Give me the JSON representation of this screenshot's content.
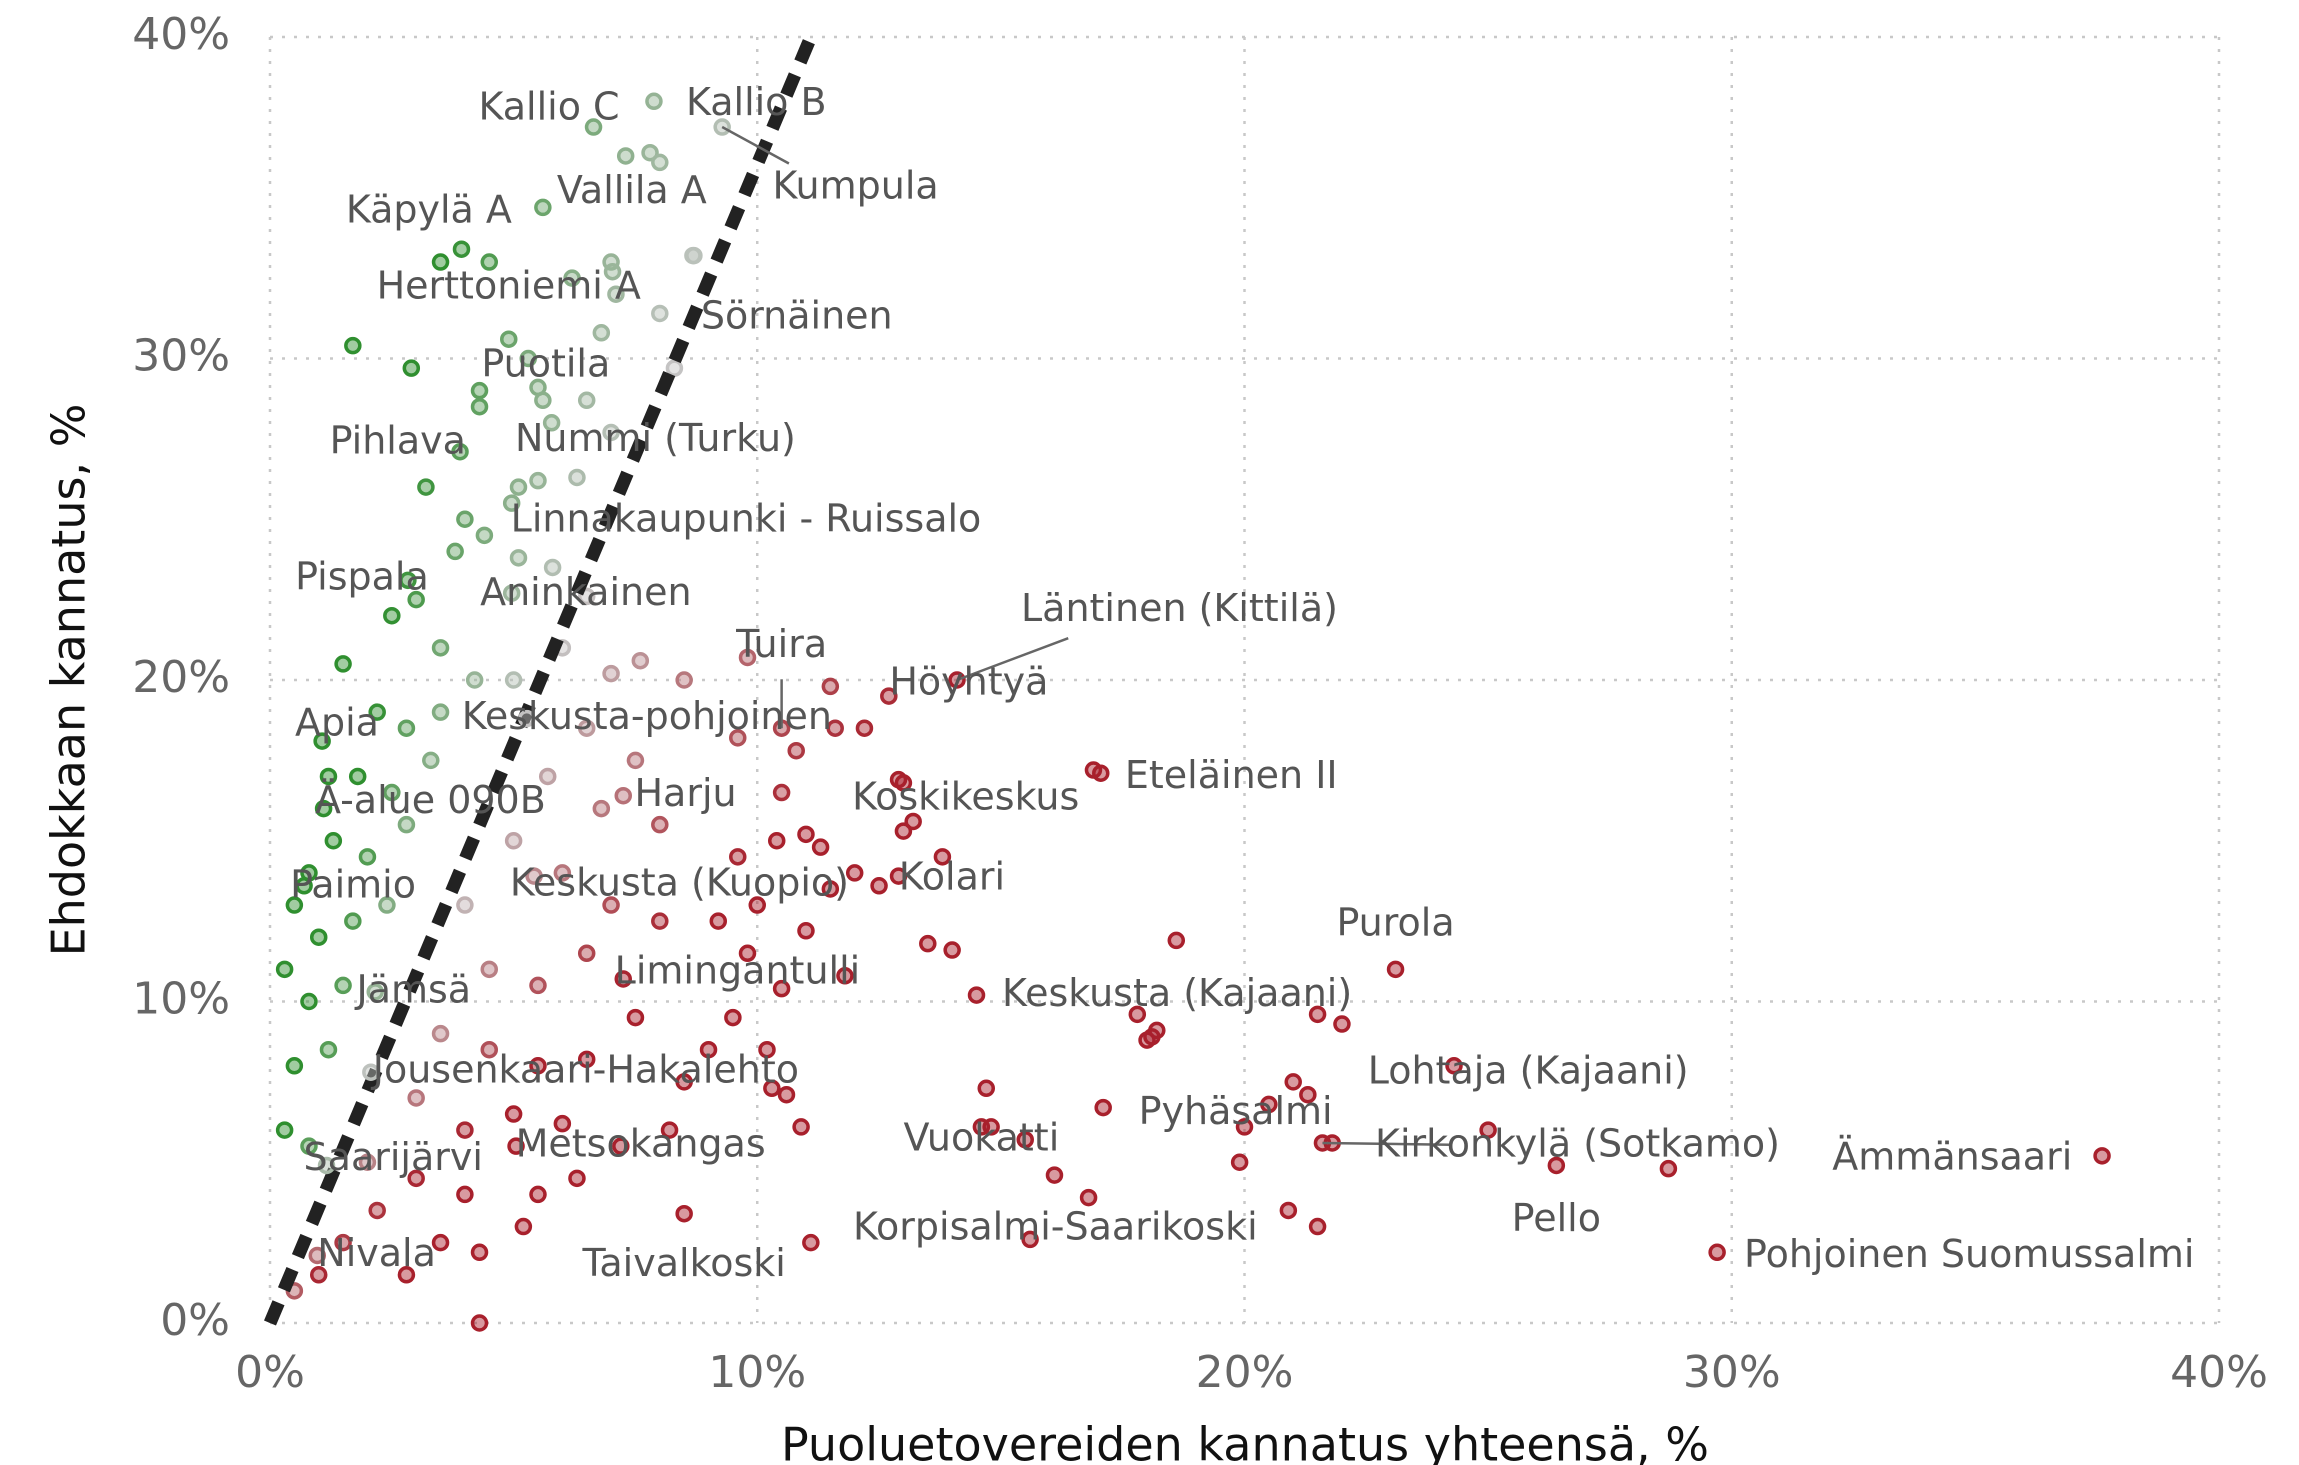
{
  "chart_data": {
    "type": "scatter",
    "xlabel": "Puoluetovereiden kannatus yhteensä, %",
    "ylabel": "Ehdokkaan kannatus, %",
    "xlim": [
      0,
      40
    ],
    "ylim": [
      0,
      40
    ],
    "xticks": [
      {
        "value": 0,
        "label": "0%"
      },
      {
        "value": 10,
        "label": "10%"
      },
      {
        "value": 20,
        "label": "20%"
      },
      {
        "value": 30,
        "label": "30%"
      },
      {
        "value": 40,
        "label": "40%"
      }
    ],
    "yticks": [
      {
        "value": 0,
        "label": "0%"
      },
      {
        "value": 10,
        "label": "10%"
      },
      {
        "value": 20,
        "label": "20%"
      },
      {
        "value": 30,
        "label": "30%"
      },
      {
        "value": 40,
        "label": "40%"
      }
    ],
    "grid": true,
    "colors": {
      "above": "#2f8f2f",
      "near": "#c4c4c4",
      "below": "#a8202c",
      "reference_line": "#222222"
    },
    "reference_line": {
      "x": [
        0,
        11.1
      ],
      "y": [
        0,
        40
      ]
    },
    "labels": [
      {
        "text": "Kallio C",
        "x": 6.64,
        "y": 37.2
      },
      {
        "text": "Kallio B",
        "x": 7.88,
        "y": 38.0
      },
      {
        "text": "Kumpula",
        "x": 9.28,
        "y": 37.2
      },
      {
        "text": "Vallila A",
        "x": 5.6,
        "y": 34.7
      },
      {
        "text": "Käpylä A",
        "x": 3.93,
        "y": 33.4
      },
      {
        "text": "Herttoniemi A",
        "x": 7.03,
        "y": 32.7
      },
      {
        "text": "Sörnäinen",
        "x": 8.68,
        "y": 33.2
      },
      {
        "text": "Puotila",
        "x": 5.6,
        "y": 28.7
      },
      {
        "text": "Pihlava",
        "x": 3.9,
        "y": 27.1
      },
      {
        "text": "Nummi (Turku)",
        "x": 5.78,
        "y": 28.0
      },
      {
        "text": "Linnakaupunki - Ruissalo",
        "x": 4.96,
        "y": 25.5
      },
      {
        "text": "Läntinen (Kittilä)",
        "x": 14.1,
        "y": 20.0
      },
      {
        "text": "Pispala",
        "x": 2.83,
        "y": 23.1
      },
      {
        "text": "Aninkainen",
        "x": 4.96,
        "y": 22.7
      },
      {
        "text": "Tuira",
        "x": 10.5,
        "y": 18.5
      },
      {
        "text": "Höyhtyä",
        "x": 12.7,
        "y": 19.5
      },
      {
        "text": "Apia",
        "x": 1.07,
        "y": 18.1
      },
      {
        "text": "Keskusta-pohjoinen",
        "x": 5.27,
        "y": 18.8
      },
      {
        "text": "Eteläinen II",
        "x": 17.05,
        "y": 17.1
      },
      {
        "text": "Koskikeskus",
        "x": 13.0,
        "y": 16.8
      },
      {
        "text": "Harju",
        "x": 7.25,
        "y": 16.4
      },
      {
        "text": "Ä-alue 090B",
        "x": 1.1,
        "y": 16.0
      },
      {
        "text": "Paimio",
        "x": 0.7,
        "y": 13.6
      },
      {
        "text": "Keskusta (Kuopio)",
        "x": 5.42,
        "y": 13.9
      },
      {
        "text": "Kolari",
        "x": 12.9,
        "y": 13.9
      },
      {
        "text": "Purola",
        "x": 23.1,
        "y": 11.0
      },
      {
        "text": "Limingantulli",
        "x": 7.25,
        "y": 10.7
      },
      {
        "text": "Keskusta (Kajaani)",
        "x": 18.1,
        "y": 8.9
      },
      {
        "text": "Jämsä",
        "x": 2.16,
        "y": 10.3
      },
      {
        "text": "Lohtaja (Kajaani)",
        "x": 24.3,
        "y": 8.0
      },
      {
        "text": "Jousenkaari-Hakalehto",
        "x": 2.07,
        "y": 7.8
      },
      {
        "text": "Pyhäsalmi",
        "x": 20.0,
        "y": 6.1
      },
      {
        "text": "Vuokatti",
        "x": 14.6,
        "y": 6.1
      },
      {
        "text": "Kirkonkylä (Sotkamo)",
        "x": 21.6,
        "y": 5.6
      },
      {
        "text": "Ämmänsaari",
        "x": 37.6,
        "y": 5.2
      },
      {
        "text": "Metsokangas",
        "x": 5.05,
        "y": 5.5
      },
      {
        "text": "Saarijärvi",
        "x": 1.16,
        "y": 4.9
      },
      {
        "text": "Pello",
        "x": 26.4,
        "y": 4.9
      },
      {
        "text": "Korpisalmi-Saarikoski",
        "x": 15.6,
        "y": 2.6
      },
      {
        "text": "Taivalkoski",
        "x": 8.5,
        "y": 3.4
      },
      {
        "text": "Nivala",
        "x": 0.97,
        "y": 2.1
      },
      {
        "text": "Pohjoinen Suomussalmi",
        "x": 29.7,
        "y": 2.2
      }
    ],
    "points": [
      [
        0.5,
        13
      ],
      [
        0.3,
        11
      ],
      [
        0.8,
        14
      ],
      [
        1.2,
        17
      ],
      [
        1.5,
        20.5
      ],
      [
        1.7,
        30.4
      ],
      [
        2.9,
        29.7
      ],
      [
        3.5,
        33
      ],
      [
        4.5,
        33
      ],
      [
        3.2,
        26
      ],
      [
        4,
        25
      ],
      [
        2.5,
        22
      ],
      [
        3,
        22.5
      ],
      [
        3.5,
        21
      ],
      [
        2.2,
        19
      ],
      [
        2.8,
        18.5
      ],
      [
        3.5,
        19
      ],
      [
        4.2,
        20
      ],
      [
        1.8,
        17
      ],
      [
        2.5,
        16.5
      ],
      [
        3.3,
        17.5
      ],
      [
        1.3,
        15
      ],
      [
        2,
        14.5
      ],
      [
        2.8,
        15.5
      ],
      [
        1,
        12
      ],
      [
        1.7,
        12.5
      ],
      [
        2.4,
        13
      ],
      [
        0.8,
        10
      ],
      [
        1.5,
        10.5
      ],
      [
        0.5,
        8
      ],
      [
        1.2,
        8.5
      ],
      [
        0.3,
        6
      ],
      [
        0.8,
        5.5
      ],
      [
        4.9,
        30.6
      ],
      [
        5.3,
        30
      ],
      [
        6.2,
        32.5
      ],
      [
        7,
        33
      ],
      [
        7.1,
        32
      ],
      [
        7.3,
        36.3
      ],
      [
        7.8,
        36.4
      ],
      [
        8,
        36.1
      ],
      [
        6.8,
        30.8
      ],
      [
        5.5,
        29.1
      ],
      [
        4.3,
        29
      ],
      [
        4.3,
        28.5
      ],
      [
        6.5,
        28.7
      ],
      [
        7,
        27.7
      ],
      [
        5.1,
        26
      ],
      [
        5.5,
        26.2
      ],
      [
        6.3,
        26.3
      ],
      [
        4.4,
        24.5
      ],
      [
        3.8,
        24
      ],
      [
        5.1,
        23.8
      ],
      [
        5.8,
        23.5
      ],
      [
        6.5,
        22.6
      ],
      [
        8,
        31.4
      ],
      [
        8.7,
        33.2
      ],
      [
        8.3,
        29.7
      ],
      [
        5,
        20
      ],
      [
        6,
        21
      ],
      [
        7,
        20.2
      ],
      [
        7.6,
        20.6
      ],
      [
        8.5,
        20
      ],
      [
        6.5,
        18.5
      ],
      [
        7.5,
        17.5
      ],
      [
        5.7,
        17
      ],
      [
        6.8,
        16
      ],
      [
        8,
        15.5
      ],
      [
        5,
        15
      ],
      [
        6,
        14
      ],
      [
        7,
        13
      ],
      [
        8,
        12.5
      ],
      [
        4,
        13
      ],
      [
        4.5,
        11
      ],
      [
        5.5,
        10.5
      ],
      [
        6.5,
        11.5
      ],
      [
        3.5,
        9
      ],
      [
        4.5,
        8.5
      ],
      [
        5.5,
        8
      ],
      [
        6.5,
        8.2
      ],
      [
        7.5,
        9.5
      ],
      [
        3,
        7
      ],
      [
        4,
        6
      ],
      [
        5,
        6.5
      ],
      [
        6,
        6.2
      ],
      [
        2,
        5
      ],
      [
        3,
        4.5
      ],
      [
        4,
        4
      ],
      [
        2.2,
        3.5
      ],
      [
        3.5,
        2.5
      ],
      [
        1.5,
        2.5
      ],
      [
        1,
        1.5
      ],
      [
        0.5,
        1
      ],
      [
        2.8,
        1.5
      ],
      [
        4.3,
        0
      ],
      [
        4.3,
        2.2
      ],
      [
        5.2,
        3
      ],
      [
        5.5,
        4
      ],
      [
        6.3,
        4.5
      ],
      [
        7.2,
        5.5
      ],
      [
        8.2,
        6
      ],
      [
        8.5,
        7.5
      ],
      [
        9,
        8.5
      ],
      [
        9.5,
        9.5
      ],
      [
        9.8,
        11.5
      ],
      [
        9.2,
        12.5
      ],
      [
        10,
        13
      ],
      [
        9.6,
        14.5
      ],
      [
        10.4,
        15
      ],
      [
        10.5,
        16.5
      ],
      [
        11,
        15.2
      ],
      [
        11.3,
        14.8
      ],
      [
        10.8,
        17.8
      ],
      [
        11.6,
        18.5
      ],
      [
        12.2,
        18.5
      ],
      [
        11.5,
        19.8
      ],
      [
        9.6,
        18.2
      ],
      [
        9.8,
        20.7
      ],
      [
        11,
        12.2
      ],
      [
        11.5,
        13.5
      ],
      [
        12,
        14
      ],
      [
        12.5,
        13.6
      ],
      [
        13,
        15.3
      ],
      [
        13.2,
        15.6
      ],
      [
        13.8,
        14.5
      ],
      [
        13.5,
        11.8
      ],
      [
        14,
        11.6
      ],
      [
        14.5,
        10.2
      ],
      [
        11.8,
        10.8
      ],
      [
        10.5,
        10.4
      ],
      [
        10.2,
        8.5
      ],
      [
        10.3,
        7.3
      ],
      [
        10.6,
        7.1
      ],
      [
        10.9,
        6.1
      ],
      [
        14.7,
        7.3
      ],
      [
        14.8,
        6.1
      ],
      [
        15.5,
        5.7
      ],
      [
        16.1,
        4.6
      ],
      [
        16.8,
        3.9
      ],
      [
        17.1,
        6.7
      ],
      [
        17.8,
        9.6
      ],
      [
        18,
        8.8
      ],
      [
        18.2,
        9.1
      ],
      [
        18.6,
        11.9
      ],
      [
        20.5,
        6.8
      ],
      [
        21,
        7.5
      ],
      [
        21.3,
        7.1
      ],
      [
        21.5,
        9.6
      ],
      [
        22,
        9.3
      ],
      [
        21.5,
        3
      ],
      [
        20.9,
        3.5
      ],
      [
        19.9,
        5
      ],
      [
        21.8,
        5.6
      ],
      [
        25,
        6
      ],
      [
        28.7,
        4.8
      ],
      [
        11.1,
        2.5
      ],
      [
        16.9,
        17.2
      ],
      [
        12.9,
        16.9
      ]
    ]
  }
}
